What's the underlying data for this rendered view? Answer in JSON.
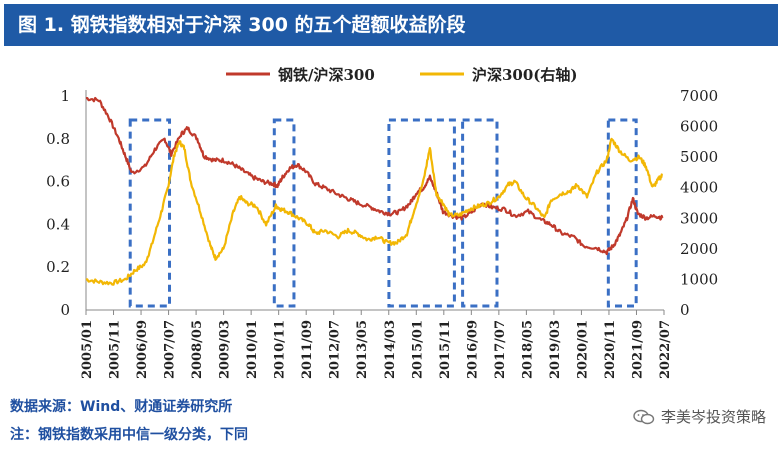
{
  "header": {
    "title": "图 1. 钢铁指数相对于沪深 300 的五个超额收益阶段"
  },
  "footer": {
    "source": "数据来源：Wind、财通证券研究所",
    "note": "注：钢铁指数采用中信一级分类，下同",
    "watermark": "李美岑投资策略"
  },
  "colors": {
    "title_bg": "#1f5aa6",
    "ratio": "#c0392b",
    "index": "#f2b705",
    "box": "#3a6fc4",
    "text_blue": "#1f4fa0"
  },
  "chart_data": {
    "type": "line",
    "title": "",
    "legend": [
      {
        "name": "钢铁/沪深300",
        "color": "#c0392b"
      },
      {
        "name": "沪深300(右轴)",
        "color": "#f2b705"
      }
    ],
    "x_ticks": [
      "2005/01",
      "2005/11",
      "2006/09",
      "2007/07",
      "2008/05",
      "2009/03",
      "2010/01",
      "2010/11",
      "2011/09",
      "2012/07",
      "2013/05",
      "2014/03",
      "2015/01",
      "2015/11",
      "2016/09",
      "2017/07",
      "2018/05",
      "2019/03",
      "2020/01",
      "2020/11",
      "2021/09",
      "2022/07"
    ],
    "y_left": {
      "min": 0,
      "max": 1,
      "ticks": [
        "0",
        "0.2",
        "0.4",
        "0.6",
        "0.8",
        "1"
      ]
    },
    "y_right": {
      "min": 0,
      "max": 7000,
      "ticks": [
        "0",
        "1000",
        "2000",
        "3000",
        "4000",
        "5000",
        "6000",
        "7000"
      ]
    },
    "x_range": [
      2005.0,
      2022.65
    ],
    "series": [
      {
        "name": "钢铁/沪深300",
        "axis": "left",
        "points": [
          [
            2005.0,
            0.99
          ],
          [
            2005.4,
            0.98
          ],
          [
            2005.7,
            0.9
          ],
          [
            2006.0,
            0.8
          ],
          [
            2006.2,
            0.72
          ],
          [
            2006.4,
            0.64
          ],
          [
            2006.8,
            0.67
          ],
          [
            2007.1,
            0.75
          ],
          [
            2007.4,
            0.8
          ],
          [
            2007.6,
            0.73
          ],
          [
            2007.9,
            0.82
          ],
          [
            2008.1,
            0.85
          ],
          [
            2008.4,
            0.8
          ],
          [
            2008.6,
            0.72
          ],
          [
            2008.9,
            0.7
          ],
          [
            2009.2,
            0.7
          ],
          [
            2009.5,
            0.68
          ],
          [
            2009.8,
            0.65
          ],
          [
            2010.1,
            0.62
          ],
          [
            2010.4,
            0.6
          ],
          [
            2010.7,
            0.59
          ],
          [
            2010.85,
            0.58
          ],
          [
            2011.0,
            0.62
          ],
          [
            2011.2,
            0.66
          ],
          [
            2011.45,
            0.68
          ],
          [
            2011.7,
            0.65
          ],
          [
            2012.0,
            0.59
          ],
          [
            2012.3,
            0.57
          ],
          [
            2012.7,
            0.54
          ],
          [
            2013.0,
            0.52
          ],
          [
            2013.3,
            0.5
          ],
          [
            2013.7,
            0.48
          ],
          [
            2014.0,
            0.46
          ],
          [
            2014.3,
            0.45
          ],
          [
            2014.6,
            0.46
          ],
          [
            2014.9,
            0.5
          ],
          [
            2015.1,
            0.55
          ],
          [
            2015.3,
            0.57
          ],
          [
            2015.5,
            0.62
          ],
          [
            2015.7,
            0.55
          ],
          [
            2015.9,
            0.46
          ],
          [
            2016.2,
            0.44
          ],
          [
            2016.5,
            0.43
          ],
          [
            2016.8,
            0.46
          ],
          [
            2017.1,
            0.5
          ],
          [
            2017.4,
            0.48
          ],
          [
            2017.8,
            0.47
          ],
          [
            2018.1,
            0.44
          ],
          [
            2018.5,
            0.46
          ],
          [
            2018.9,
            0.42
          ],
          [
            2019.2,
            0.4
          ],
          [
            2019.5,
            0.36
          ],
          [
            2019.9,
            0.34
          ],
          [
            2020.2,
            0.3
          ],
          [
            2020.6,
            0.29
          ],
          [
            2020.9,
            0.27
          ],
          [
            2021.1,
            0.3
          ],
          [
            2021.3,
            0.35
          ],
          [
            2021.5,
            0.42
          ],
          [
            2021.7,
            0.52
          ],
          [
            2021.85,
            0.45
          ],
          [
            2022.1,
            0.43
          ],
          [
            2022.4,
            0.44
          ],
          [
            2022.6,
            0.43
          ]
        ]
      },
      {
        "name": "沪深300(右轴)",
        "axis": "right",
        "points": [
          [
            2005.0,
            1000
          ],
          [
            2005.4,
            920
          ],
          [
            2005.8,
            880
          ],
          [
            2006.2,
            1000
          ],
          [
            2006.5,
            1300
          ],
          [
            2006.8,
            1500
          ],
          [
            2007.0,
            2100
          ],
          [
            2007.3,
            3200
          ],
          [
            2007.5,
            4000
          ],
          [
            2007.7,
            5100
          ],
          [
            2007.85,
            5500
          ],
          [
            2008.0,
            5300
          ],
          [
            2008.2,
            4200
          ],
          [
            2008.5,
            3200
          ],
          [
            2008.8,
            2100
          ],
          [
            2008.95,
            1700
          ],
          [
            2009.2,
            2000
          ],
          [
            2009.5,
            3200
          ],
          [
            2009.7,
            3700
          ],
          [
            2009.9,
            3500
          ],
          [
            2010.2,
            3400
          ],
          [
            2010.5,
            2800
          ],
          [
            2010.8,
            3400
          ],
          [
            2010.95,
            3300
          ],
          [
            2011.2,
            3200
          ],
          [
            2011.5,
            3000
          ],
          [
            2011.8,
            2800
          ],
          [
            2012.0,
            2500
          ],
          [
            2012.3,
            2600
          ],
          [
            2012.7,
            2400
          ],
          [
            2013.0,
            2600
          ],
          [
            2013.3,
            2500
          ],
          [
            2013.6,
            2300
          ],
          [
            2013.9,
            2400
          ],
          [
            2014.2,
            2200
          ],
          [
            2014.5,
            2200
          ],
          [
            2014.8,
            2500
          ],
          [
            2015.0,
            3200
          ],
          [
            2015.3,
            4200
          ],
          [
            2015.5,
            5300
          ],
          [
            2015.7,
            3800
          ],
          [
            2015.9,
            3500
          ],
          [
            2016.1,
            3100
          ],
          [
            2016.4,
            3100
          ],
          [
            2016.7,
            3300
          ],
          [
            2017.0,
            3400
          ],
          [
            2017.3,
            3500
          ],
          [
            2017.6,
            3700
          ],
          [
            2017.9,
            4100
          ],
          [
            2018.1,
            4200
          ],
          [
            2018.4,
            3700
          ],
          [
            2018.7,
            3400
          ],
          [
            2019.0,
            3000
          ],
          [
            2019.2,
            3600
          ],
          [
            2019.5,
            3800
          ],
          [
            2019.8,
            3900
          ],
          [
            2020.0,
            4100
          ],
          [
            2020.3,
            3700
          ],
          [
            2020.6,
            4500
          ],
          [
            2020.9,
            4900
          ],
          [
            2021.05,
            5600
          ],
          [
            2021.3,
            5200
          ],
          [
            2021.6,
            4900
          ],
          [
            2021.9,
            5000
          ],
          [
            2022.1,
            4700
          ],
          [
            2022.3,
            4000
          ],
          [
            2022.5,
            4300
          ],
          [
            2022.6,
            4400
          ]
        ]
      }
    ],
    "highlight_periods": [
      [
        2006.35,
        2007.55
      ],
      [
        2010.75,
        2011.35
      ],
      [
        2014.25,
        2016.25
      ],
      [
        2016.5,
        2017.55
      ],
      [
        2020.95,
        2021.8
      ]
    ]
  }
}
